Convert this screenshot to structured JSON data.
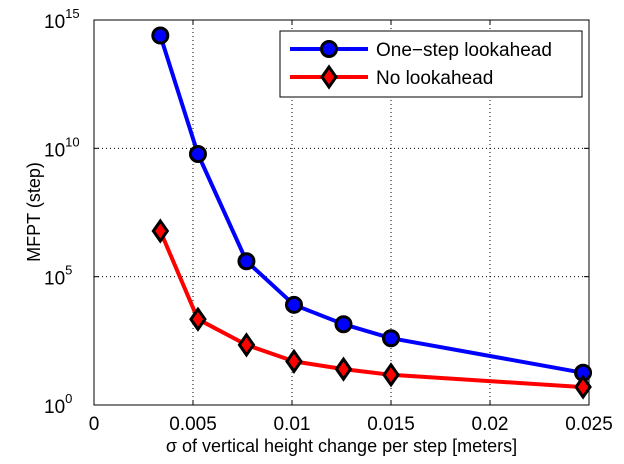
{
  "chart_data": {
    "type": "line",
    "title": "",
    "xlabel": "σ of vertical height change per step [meters]",
    "ylabel": "MFPT (step)",
    "xlim": [
      0,
      0.025
    ],
    "ylim": [
      1,
      1000000000000000.0
    ],
    "yscale": "log",
    "grid": true,
    "legend_position": "top-right",
    "x_ticks": [
      "0",
      "0.005",
      "0.01",
      "0.015",
      "0.02",
      "0.025"
    ],
    "y_ticks": [
      {
        "base": "10",
        "exp": "0"
      },
      {
        "base": "10",
        "exp": "5"
      },
      {
        "base": "10",
        "exp": "10"
      },
      {
        "base": "10",
        "exp": "15"
      }
    ],
    "series": [
      {
        "name": "One−step lookahead",
        "color": "#0000ff",
        "marker": "circle",
        "marker_fill": "#0000ff",
        "x": [
          0.00335,
          0.00525,
          0.0077,
          0.0101,
          0.0126,
          0.015,
          0.0247
        ],
        "y": [
          250000000000000.0,
          6000000000.0,
          400000.0,
          8000.0,
          1400.0,
          400.0,
          18
        ]
      },
      {
        "name": "No lookahead",
        "color": "#ff0000",
        "marker": "diamond",
        "marker_fill": "#ff0000",
        "x": [
          0.00335,
          0.00525,
          0.0077,
          0.0101,
          0.0126,
          0.015,
          0.0247
        ],
        "y": [
          6000000.0,
          2200.0,
          220.0,
          50,
          25,
          15,
          5
        ]
      }
    ]
  }
}
